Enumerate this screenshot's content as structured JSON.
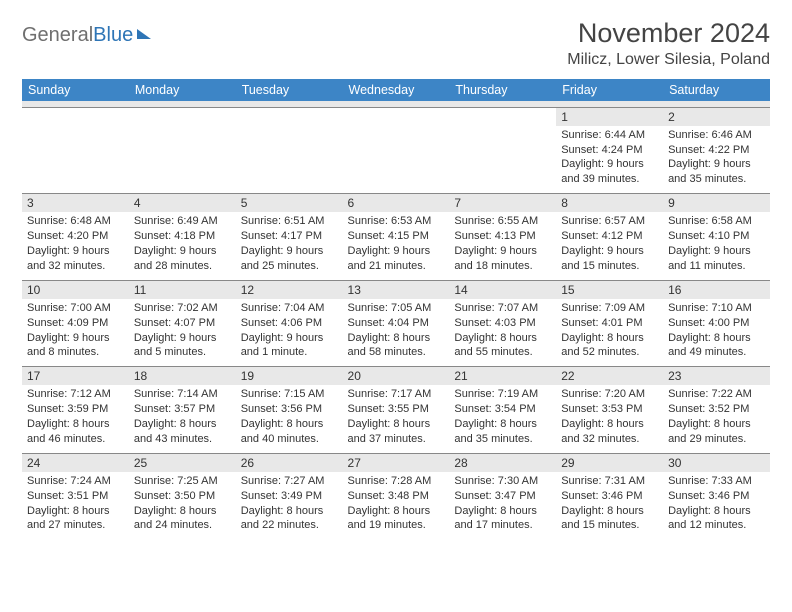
{
  "logo": {
    "text1": "General",
    "text2": "Blue"
  },
  "title": "November 2024",
  "location": "Milicz, Lower Silesia, Poland",
  "colors": {
    "header_bg": "#3d85c6",
    "header_text": "#ffffff",
    "stripe_bg": "#e8e8e8",
    "cell_border": "#888888",
    "body_text": "#333333",
    "logo_gray": "#6f6f6f",
    "logo_blue": "#2e75b6",
    "page_bg": "#ffffff"
  },
  "day_headers": [
    "Sunday",
    "Monday",
    "Tuesday",
    "Wednesday",
    "Thursday",
    "Friday",
    "Saturday"
  ],
  "weeks": [
    [
      {
        "day": "",
        "sunrise": "",
        "sunset": "",
        "daylight1": "",
        "daylight2": "",
        "empty": true
      },
      {
        "day": "",
        "sunrise": "",
        "sunset": "",
        "daylight1": "",
        "daylight2": "",
        "empty": true
      },
      {
        "day": "",
        "sunrise": "",
        "sunset": "",
        "daylight1": "",
        "daylight2": "",
        "empty": true
      },
      {
        "day": "",
        "sunrise": "",
        "sunset": "",
        "daylight1": "",
        "daylight2": "",
        "empty": true
      },
      {
        "day": "",
        "sunrise": "",
        "sunset": "",
        "daylight1": "",
        "daylight2": "",
        "empty": true
      },
      {
        "day": "1",
        "sunrise": "Sunrise: 6:44 AM",
        "sunset": "Sunset: 4:24 PM",
        "daylight1": "Daylight: 9 hours",
        "daylight2": "and 39 minutes."
      },
      {
        "day": "2",
        "sunrise": "Sunrise: 6:46 AM",
        "sunset": "Sunset: 4:22 PM",
        "daylight1": "Daylight: 9 hours",
        "daylight2": "and 35 minutes."
      }
    ],
    [
      {
        "day": "3",
        "sunrise": "Sunrise: 6:48 AM",
        "sunset": "Sunset: 4:20 PM",
        "daylight1": "Daylight: 9 hours",
        "daylight2": "and 32 minutes."
      },
      {
        "day": "4",
        "sunrise": "Sunrise: 6:49 AM",
        "sunset": "Sunset: 4:18 PM",
        "daylight1": "Daylight: 9 hours",
        "daylight2": "and 28 minutes."
      },
      {
        "day": "5",
        "sunrise": "Sunrise: 6:51 AM",
        "sunset": "Sunset: 4:17 PM",
        "daylight1": "Daylight: 9 hours",
        "daylight2": "and 25 minutes."
      },
      {
        "day": "6",
        "sunrise": "Sunrise: 6:53 AM",
        "sunset": "Sunset: 4:15 PM",
        "daylight1": "Daylight: 9 hours",
        "daylight2": "and 21 minutes."
      },
      {
        "day": "7",
        "sunrise": "Sunrise: 6:55 AM",
        "sunset": "Sunset: 4:13 PM",
        "daylight1": "Daylight: 9 hours",
        "daylight2": "and 18 minutes."
      },
      {
        "day": "8",
        "sunrise": "Sunrise: 6:57 AM",
        "sunset": "Sunset: 4:12 PM",
        "daylight1": "Daylight: 9 hours",
        "daylight2": "and 15 minutes."
      },
      {
        "day": "9",
        "sunrise": "Sunrise: 6:58 AM",
        "sunset": "Sunset: 4:10 PM",
        "daylight1": "Daylight: 9 hours",
        "daylight2": "and 11 minutes."
      }
    ],
    [
      {
        "day": "10",
        "sunrise": "Sunrise: 7:00 AM",
        "sunset": "Sunset: 4:09 PM",
        "daylight1": "Daylight: 9 hours",
        "daylight2": "and 8 minutes."
      },
      {
        "day": "11",
        "sunrise": "Sunrise: 7:02 AM",
        "sunset": "Sunset: 4:07 PM",
        "daylight1": "Daylight: 9 hours",
        "daylight2": "and 5 minutes."
      },
      {
        "day": "12",
        "sunrise": "Sunrise: 7:04 AM",
        "sunset": "Sunset: 4:06 PM",
        "daylight1": "Daylight: 9 hours",
        "daylight2": "and 1 minute."
      },
      {
        "day": "13",
        "sunrise": "Sunrise: 7:05 AM",
        "sunset": "Sunset: 4:04 PM",
        "daylight1": "Daylight: 8 hours",
        "daylight2": "and 58 minutes."
      },
      {
        "day": "14",
        "sunrise": "Sunrise: 7:07 AM",
        "sunset": "Sunset: 4:03 PM",
        "daylight1": "Daylight: 8 hours",
        "daylight2": "and 55 minutes."
      },
      {
        "day": "15",
        "sunrise": "Sunrise: 7:09 AM",
        "sunset": "Sunset: 4:01 PM",
        "daylight1": "Daylight: 8 hours",
        "daylight2": "and 52 minutes."
      },
      {
        "day": "16",
        "sunrise": "Sunrise: 7:10 AM",
        "sunset": "Sunset: 4:00 PM",
        "daylight1": "Daylight: 8 hours",
        "daylight2": "and 49 minutes."
      }
    ],
    [
      {
        "day": "17",
        "sunrise": "Sunrise: 7:12 AM",
        "sunset": "Sunset: 3:59 PM",
        "daylight1": "Daylight: 8 hours",
        "daylight2": "and 46 minutes."
      },
      {
        "day": "18",
        "sunrise": "Sunrise: 7:14 AM",
        "sunset": "Sunset: 3:57 PM",
        "daylight1": "Daylight: 8 hours",
        "daylight2": "and 43 minutes."
      },
      {
        "day": "19",
        "sunrise": "Sunrise: 7:15 AM",
        "sunset": "Sunset: 3:56 PM",
        "daylight1": "Daylight: 8 hours",
        "daylight2": "and 40 minutes."
      },
      {
        "day": "20",
        "sunrise": "Sunrise: 7:17 AM",
        "sunset": "Sunset: 3:55 PM",
        "daylight1": "Daylight: 8 hours",
        "daylight2": "and 37 minutes."
      },
      {
        "day": "21",
        "sunrise": "Sunrise: 7:19 AM",
        "sunset": "Sunset: 3:54 PM",
        "daylight1": "Daylight: 8 hours",
        "daylight2": "and 35 minutes."
      },
      {
        "day": "22",
        "sunrise": "Sunrise: 7:20 AM",
        "sunset": "Sunset: 3:53 PM",
        "daylight1": "Daylight: 8 hours",
        "daylight2": "and 32 minutes."
      },
      {
        "day": "23",
        "sunrise": "Sunrise: 7:22 AM",
        "sunset": "Sunset: 3:52 PM",
        "daylight1": "Daylight: 8 hours",
        "daylight2": "and 29 minutes."
      }
    ],
    [
      {
        "day": "24",
        "sunrise": "Sunrise: 7:24 AM",
        "sunset": "Sunset: 3:51 PM",
        "daylight1": "Daylight: 8 hours",
        "daylight2": "and 27 minutes."
      },
      {
        "day": "25",
        "sunrise": "Sunrise: 7:25 AM",
        "sunset": "Sunset: 3:50 PM",
        "daylight1": "Daylight: 8 hours",
        "daylight2": "and 24 minutes."
      },
      {
        "day": "26",
        "sunrise": "Sunrise: 7:27 AM",
        "sunset": "Sunset: 3:49 PM",
        "daylight1": "Daylight: 8 hours",
        "daylight2": "and 22 minutes."
      },
      {
        "day": "27",
        "sunrise": "Sunrise: 7:28 AM",
        "sunset": "Sunset: 3:48 PM",
        "daylight1": "Daylight: 8 hours",
        "daylight2": "and 19 minutes."
      },
      {
        "day": "28",
        "sunrise": "Sunrise: 7:30 AM",
        "sunset": "Sunset: 3:47 PM",
        "daylight1": "Daylight: 8 hours",
        "daylight2": "and 17 minutes."
      },
      {
        "day": "29",
        "sunrise": "Sunrise: 7:31 AM",
        "sunset": "Sunset: 3:46 PM",
        "daylight1": "Daylight: 8 hours",
        "daylight2": "and 15 minutes."
      },
      {
        "day": "30",
        "sunrise": "Sunrise: 7:33 AM",
        "sunset": "Sunset: 3:46 PM",
        "daylight1": "Daylight: 8 hours",
        "daylight2": "and 12 minutes."
      }
    ]
  ]
}
